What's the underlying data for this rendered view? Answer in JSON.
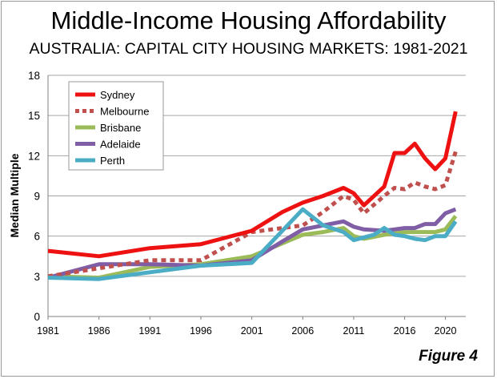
{
  "title": "Middle-Income Housing Affordability",
  "subtitle": "AUSTRALIA: CAPITAL CITY HOUSING MARKETS: 1981-2021",
  "figure_label": "Figure 4",
  "chart_data": {
    "type": "line",
    "title": "Middle-Income Housing Affordability",
    "subtitle": "AUSTRALIA: CAPITAL CITY HOUSING MARKETS: 1981-2021",
    "xlabel": "",
    "ylabel": "Median Multiple",
    "xlim": [
      1981,
      2022
    ],
    "ylim": [
      0,
      18
    ],
    "x_ticks": [
      1981,
      1986,
      1991,
      1996,
      2001,
      2006,
      2011,
      2016,
      2020
    ],
    "x_tick_labels": [
      "1981",
      "1986",
      "1991",
      "1996",
      "2001",
      "2006",
      "2011",
      "2016",
      "2020"
    ],
    "y_ticks": [
      0,
      3,
      6,
      9,
      12,
      15,
      18
    ],
    "y_tick_labels": [
      "0",
      "3",
      "6",
      "9",
      "12",
      "15",
      "18"
    ],
    "grid": "horizontal",
    "legend_position": "top-left",
    "series": [
      {
        "name": "Sydney",
        "color": "#ee1111",
        "style": "solid",
        "x": [
          1981,
          1986,
          1991,
          1996,
          2001,
          2004,
          2006,
          2008,
          2010,
          2011,
          2012,
          2014,
          2015,
          2016,
          2017,
          2018,
          2019,
          2020,
          2021
        ],
        "values": [
          4.9,
          4.5,
          5.1,
          5.4,
          6.4,
          7.8,
          8.5,
          9.0,
          9.6,
          9.2,
          8.3,
          9.7,
          12.2,
          12.2,
          12.9,
          11.8,
          11.0,
          11.8,
          15.3
        ]
      },
      {
        "name": "Melbourne",
        "color": "#c0504d",
        "style": "dotted",
        "x": [
          1981,
          1986,
          1991,
          1996,
          2001,
          2006,
          2008,
          2010,
          2011,
          2012,
          2014,
          2015,
          2016,
          2017,
          2018,
          2019,
          2020,
          2021
        ],
        "values": [
          3.0,
          3.6,
          4.2,
          4.2,
          6.3,
          6.8,
          7.8,
          9.0,
          8.7,
          7.7,
          9.0,
          9.6,
          9.5,
          10.0,
          9.7,
          9.5,
          9.8,
          12.3
        ]
      },
      {
        "name": "Brisbane",
        "color": "#9bbb59",
        "style": "solid",
        "x": [
          1981,
          1986,
          1991,
          1996,
          2001,
          2006,
          2008,
          2010,
          2011,
          2012,
          2014,
          2015,
          2016,
          2017,
          2018,
          2019,
          2020,
          2021
        ],
        "values": [
          3.0,
          2.9,
          3.7,
          3.9,
          4.5,
          6.1,
          6.3,
          6.6,
          6.0,
          5.8,
          6.1,
          6.2,
          6.3,
          6.3,
          6.3,
          6.3,
          6.5,
          7.5
        ]
      },
      {
        "name": "Adelaide",
        "color": "#7f5ea6",
        "style": "solid",
        "x": [
          1981,
          1986,
          1991,
          1996,
          2001,
          2004,
          2006,
          2008,
          2010,
          2011,
          2012,
          2014,
          2015,
          2016,
          2017,
          2018,
          2019,
          2020,
          2021
        ],
        "values": [
          2.9,
          3.9,
          3.9,
          3.8,
          4.2,
          5.6,
          6.5,
          6.8,
          7.1,
          6.7,
          6.5,
          6.4,
          6.5,
          6.6,
          6.6,
          6.9,
          6.9,
          7.7,
          8.0
        ]
      },
      {
        "name": "Perth",
        "color": "#4bacc6",
        "style": "solid",
        "x": [
          1981,
          1986,
          1991,
          1996,
          2001,
          2006,
          2008,
          2010,
          2011,
          2012,
          2013,
          2014,
          2015,
          2016,
          2017,
          2018,
          2019,
          2020,
          2021
        ],
        "values": [
          2.9,
          2.8,
          3.3,
          3.8,
          4.0,
          8.0,
          6.8,
          6.3,
          5.7,
          5.9,
          6.1,
          6.6,
          6.1,
          6.0,
          5.8,
          5.7,
          6.0,
          6.0,
          7.1
        ]
      }
    ]
  }
}
